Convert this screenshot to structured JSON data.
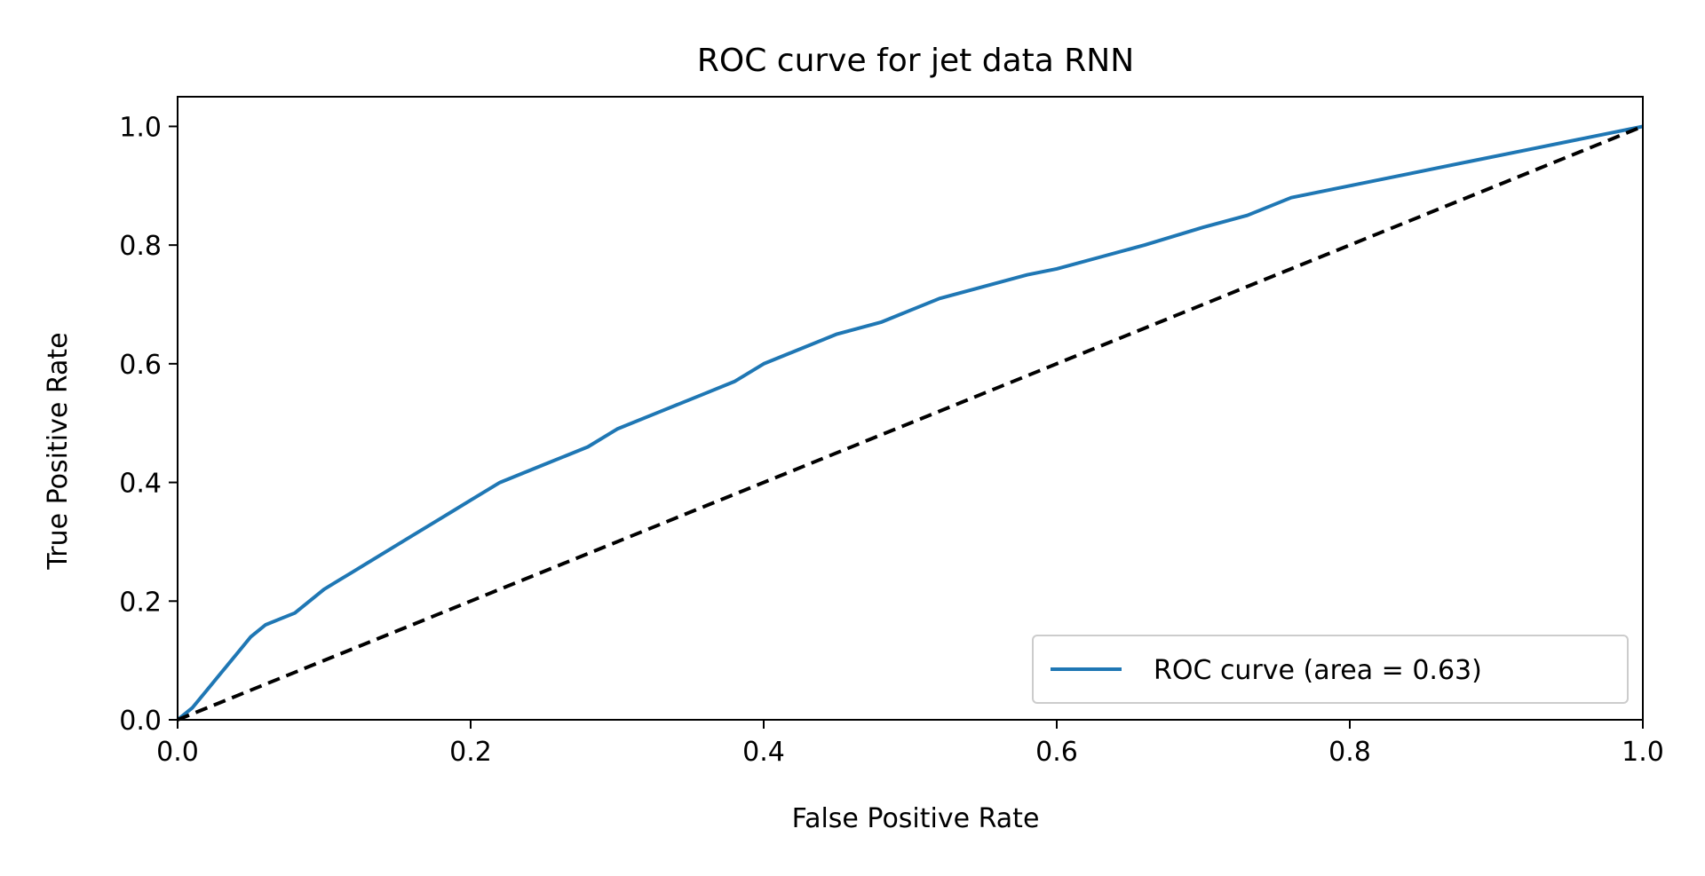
{
  "chart_data": {
    "type": "line",
    "title": "ROC curve for jet data RNN",
    "xlabel": "False Positive Rate",
    "ylabel": "True Positive Rate",
    "xlim": [
      0.0,
      1.0
    ],
    "ylim": [
      0.0,
      1.05
    ],
    "xticks": [
      "0.0",
      "0.2",
      "0.4",
      "0.6",
      "0.8",
      "1.0"
    ],
    "yticks": [
      "0.0",
      "0.2",
      "0.4",
      "0.6",
      "0.8",
      "1.0"
    ],
    "grid": false,
    "legend_position": "lower-right",
    "series": [
      {
        "name": "ROC curve (area = 0.63)",
        "color": "#1f77b4",
        "line_style": "solid",
        "x": [
          0.0,
          0.01,
          0.02,
          0.03,
          0.04,
          0.05,
          0.06,
          0.07,
          0.08,
          0.09,
          0.1,
          0.12,
          0.14,
          0.16,
          0.18,
          0.2,
          0.22,
          0.25,
          0.28,
          0.3,
          0.33,
          0.36,
          0.38,
          0.4,
          0.42,
          0.45,
          0.48,
          0.5,
          0.52,
          0.55,
          0.58,
          0.6,
          0.63,
          0.66,
          0.7,
          0.73,
          0.76,
          0.8,
          0.84,
          0.88,
          0.92,
          0.96,
          1.0
        ],
        "y": [
          0.0,
          0.02,
          0.05,
          0.08,
          0.11,
          0.14,
          0.16,
          0.17,
          0.18,
          0.2,
          0.22,
          0.25,
          0.28,
          0.31,
          0.34,
          0.37,
          0.4,
          0.43,
          0.46,
          0.49,
          0.52,
          0.55,
          0.57,
          0.6,
          0.62,
          0.65,
          0.67,
          0.69,
          0.71,
          0.73,
          0.75,
          0.76,
          0.78,
          0.8,
          0.83,
          0.85,
          0.88,
          0.9,
          0.92,
          0.94,
          0.96,
          0.98,
          1.0
        ]
      },
      {
        "name": "",
        "color": "#000000",
        "line_style": "dashed",
        "x": [
          0.0,
          1.0
        ],
        "y": [
          0.0,
          1.0
        ]
      }
    ]
  }
}
